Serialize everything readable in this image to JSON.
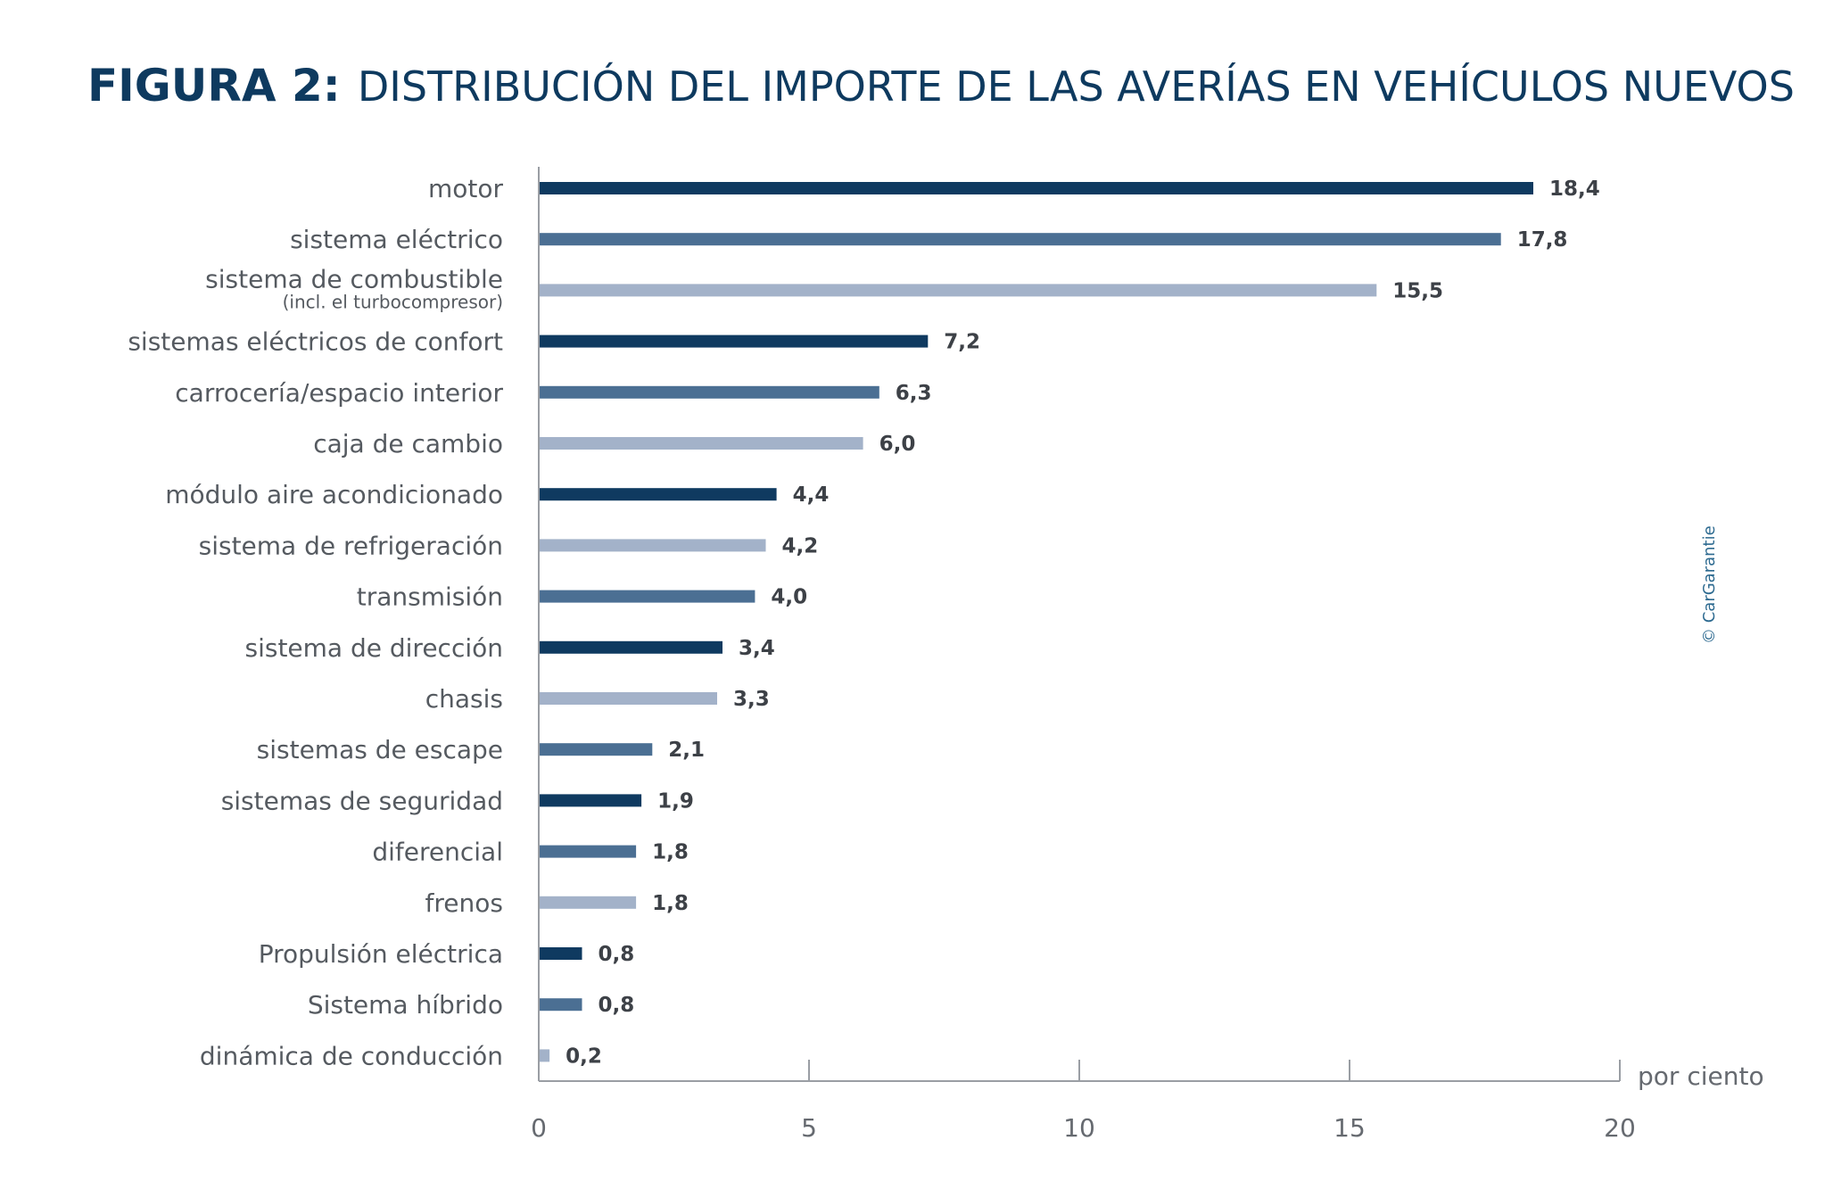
{
  "chart_data": {
    "type": "bar",
    "orientation": "horizontal",
    "title_prefix": "FIGURA 2:",
    "title": "DISTRIBUCIÓN DEL IMPORTE DE LAS AVERÍAS EN VEHÍCULOS NUEVOS",
    "xlabel": "por ciento",
    "ylabel": "",
    "xlim": [
      0,
      20
    ],
    "xticks": [
      0,
      5,
      10,
      15,
      20
    ],
    "grid": false,
    "credit": "© CarGarantie",
    "categories": [
      {
        "label": "motor",
        "sublabel": "",
        "value": 18.4,
        "value_label": "18,4",
        "color": "#0f3a60"
      },
      {
        "label": "sistema eléctrico",
        "sublabel": "",
        "value": 17.8,
        "value_label": "17,8",
        "color": "#4b6f93"
      },
      {
        "label": "sistema de combustible",
        "sublabel": "(incl. el turbocompresor)",
        "value": 15.5,
        "value_label": "15,5",
        "color": "#a3b2c9"
      },
      {
        "label": "sistemas eléctricos de confort",
        "sublabel": "",
        "value": 7.2,
        "value_label": "7,2",
        "color": "#0f3a60"
      },
      {
        "label": "carrocería/espacio interior",
        "sublabel": "",
        "value": 6.3,
        "value_label": "6,3",
        "color": "#4b6f93"
      },
      {
        "label": "caja de cambio",
        "sublabel": "",
        "value": 6.0,
        "value_label": "6,0",
        "color": "#a3b2c9"
      },
      {
        "label": "módulo aire acondicionado",
        "sublabel": "",
        "value": 4.4,
        "value_label": "4,4",
        "color": "#0f3a60"
      },
      {
        "label": "sistema de refrigeración",
        "sublabel": "",
        "value": 4.2,
        "value_label": "4,2",
        "color": "#a3b2c9"
      },
      {
        "label": "transmisión",
        "sublabel": "",
        "value": 4.0,
        "value_label": "4,0",
        "color": "#4b6f93"
      },
      {
        "label": "sistema de dirección",
        "sublabel": "",
        "value": 3.4,
        "value_label": "3,4",
        "color": "#0f3a60"
      },
      {
        "label": "chasis",
        "sublabel": "",
        "value": 3.3,
        "value_label": "3,3",
        "color": "#a3b2c9"
      },
      {
        "label": "sistemas de escape",
        "sublabel": "",
        "value": 2.1,
        "value_label": "2,1",
        "color": "#4b6f93"
      },
      {
        "label": "sistemas de seguridad",
        "sublabel": "",
        "value": 1.9,
        "value_label": "1,9",
        "color": "#0f3a60"
      },
      {
        "label": "diferencial",
        "sublabel": "",
        "value": 1.8,
        "value_label": "1,8",
        "color": "#4b6f93"
      },
      {
        "label": "frenos",
        "sublabel": "",
        "value": 1.8,
        "value_label": "1,8",
        "color": "#a3b2c9"
      },
      {
        "label": "Propulsión eléctrica",
        "sublabel": "",
        "value": 0.8,
        "value_label": "0,8",
        "color": "#0f3a60"
      },
      {
        "label": "Sistema híbrido",
        "sublabel": "",
        "value": 0.8,
        "value_label": "0,8",
        "color": "#4b6f93"
      },
      {
        "label": "dinámica de conducción",
        "sublabel": "",
        "value": 0.2,
        "value_label": "0,2",
        "color": "#a3b2c9"
      }
    ]
  }
}
